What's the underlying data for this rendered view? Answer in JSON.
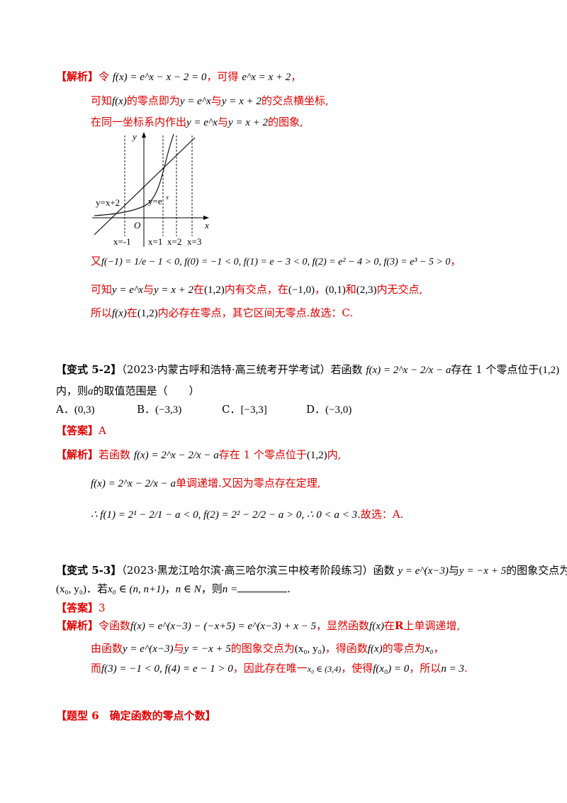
{
  "sec1": {
    "tag": "【解析】",
    "l1a": "令",
    "l1eq": "f(x) = e^x − x − 2 = 0",
    "l1b": "，可得",
    "l1eq2": "e^x = x + 2",
    "l1c": "，",
    "l2a": "可知",
    "l2f": "f(x)",
    "l2b": "的零点即为",
    "l2e1": "y = e^x",
    "l2c": "与",
    "l2e2": "y = x + 2",
    "l2d": "的交点横坐标,",
    "l3a": "在同一坐标系内作出",
    "l3e1": "y = e^x",
    "l3b": "与",
    "l3e2": "y = x + 2",
    "l3c": "的图象,",
    "graph": {
      "x_axis": "x",
      "y_axis": "y",
      "origin": "O",
      "label_line": "y=x+2",
      "label_exp": "y=e",
      "label_exp_sup": "x",
      "x_marks": [
        "x=-1",
        "x=1",
        "x=2",
        "x=3"
      ]
    },
    "l4a": "又",
    "l4eq": "f(−1) = 1/e − 1 < 0, f(0) = −1 < 0, f(1) = e − 3 < 0, f(2) = e² − 4 > 0, f(3) = e³ − 5 > 0",
    "l4b": "，",
    "l5a": "可知",
    "l5e1": "y = e^x",
    "l5b": "与",
    "l5e2": "y = x + 2",
    "l5c": "在",
    "l5i1": "(1,2)",
    "l5d": "内有交点，在",
    "l5i2": "(−1,0)",
    "l5e": "，",
    "l5i3": "(0,1)",
    "l5f": "和",
    "l5i4": "(2,3)",
    "l5g": "内无交点,",
    "l6a": "所以",
    "l6f": "f(x)",
    "l6b": "在",
    "l6i": "(1,2)",
    "l6c": "内必存在零点，其它区间无零点.故选：C."
  },
  "sec2": {
    "tag": "【变式 5-2】",
    "src": "（2023·内蒙古呼和浩特·高三统考开学考试）",
    "qa": "若函数",
    "qf": "f(x) = 2^x − 2/x − a",
    "qb": "存在 1 个零点位于",
    "qi": "(1,2)",
    "q2": "内，则",
    "q2a": "a",
    "q2b": "的取值范围是（　　）",
    "options": [
      {
        "label": "A．",
        "value": "(0,3)"
      },
      {
        "label": "B．",
        "value": "(−3,3)"
      },
      {
        "label": "C．",
        "value": "[−3,3]"
      },
      {
        "label": "D．",
        "value": "(−3,0)"
      }
    ],
    "ans_tag": "【答案】",
    "ans": "A",
    "sol_tag": "【解析】",
    "s1a": "若函数",
    "s1f": "f(x) = 2^x − 2/x − a",
    "s1b": "存在 1 个零点位于",
    "s1i": "(1,2)",
    "s1c": "内,",
    "s2f": "f(x) = 2^x − 2/x − a",
    "s2a": "单调递增.又因为零点存在定理,",
    "s3f": "∴ f(1) = 2¹ − 2/1 − a < 0, f(2) = 2² − 2/2 − a > 0, ∴ 0 < a < 3",
    "s3a": ".故选：A."
  },
  "sec3": {
    "tag": "【变式 5-3】",
    "src": "（2023·黑龙江哈尔滨·高三哈尔滨三中校考阶段练习）",
    "qa": "函数",
    "qe1": "y = e^(x−3)",
    "qb": "与",
    "qe2": "y = −x + 5",
    "qc": "的图象交点为",
    "q2pt": "(x₀, y₀)",
    "q2a": "．若",
    "q2in": "x₀ ∈ (n, n+1)",
    "q2b": "，",
    "q2n": "n ∈ N",
    "q2c": "，则",
    "q2d": "n =",
    "q2e": ".",
    "ans_tag": "【答案】",
    "ans": "3",
    "sol_tag": "【解析】",
    "s1a": "令函数",
    "s1f": "f(x) = e^(x−3) − (−x+5) = e^(x−3) + x − 5",
    "s1b": "，显然函数",
    "s1g": "f(x)",
    "s1c": "在",
    "s1R": "R",
    "s1d": "上单调递增,",
    "s2a": "由函数",
    "s2e1": "y = e^(x−3)",
    "s2b": "与",
    "s2e2": "y = −x + 5",
    "s2c": "的图象交点为",
    "s2pt": "(x₀, y₀)",
    "s2d": "，得函数",
    "s2f": "f(x)",
    "s2e": "的零点为",
    "s2x": "x₀",
    "s2g": "，",
    "s3a": "而",
    "s3f": "f(3) = −1 < 0, f(4) = e − 1 > 0",
    "s3b": "，因此存在唯一",
    "s3x": "x₀ ∈ (3,4)",
    "s3c": "，使得",
    "s3g": "f(x₀) = 0",
    "s3d": "，所以",
    "s3n": "n = 3",
    "s3e": "."
  },
  "sec4": {
    "tag": "【题型 6　确定函数的零点个数】"
  }
}
